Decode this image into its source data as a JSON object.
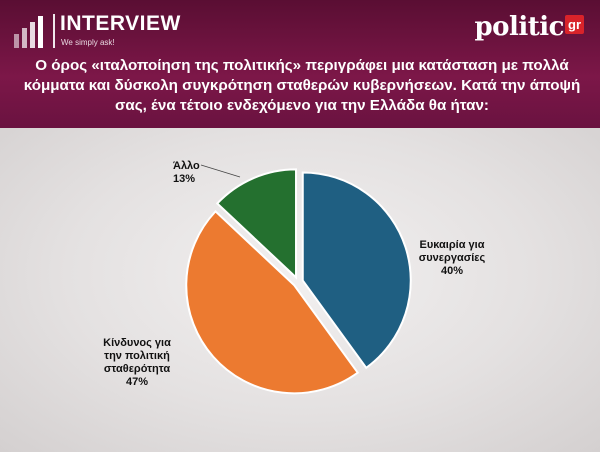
{
  "header": {
    "brand": "INTERVIEW",
    "tagline": "We simply ask!",
    "site_logo_word": "politic",
    "site_logo_suffix": "gr",
    "question": "Ο όρος «ιταλοποίηση της πολιτικής» περιγράφει μια κατάσταση με πολλά κόμματα και δύσκολη συγκρότηση σταθερών κυβερνήσεων. Κατά την άποψή σας, ένα τέτοιο ενδεχόμενο για την Ελλάδα θα ήταν:"
  },
  "colors": {
    "header_bg": "#7c1748",
    "accent_red": "#d8232a"
  },
  "chart_data": {
    "type": "pie",
    "title": "",
    "categories": [
      "Ευκαιρία για συνεργασίες",
      "Κίνδυνος για την πολιτική σταθερότητα",
      "Άλλο"
    ],
    "values": [
      40,
      47,
      13
    ],
    "colors": [
      "#1f5f82",
      "#ec7a30",
      "#24702f"
    ],
    "labels": [
      {
        "lines": [
          "Ευκαιρία για",
          "συνεργασίες",
          "40%"
        ]
      },
      {
        "lines": [
          "Κίνδυνος για",
          "την πολιτική",
          "σταθερότητα",
          "47%"
        ]
      },
      {
        "lines": [
          "Άλλο",
          "13%"
        ]
      }
    ],
    "unit": "%",
    "legend": "none"
  }
}
